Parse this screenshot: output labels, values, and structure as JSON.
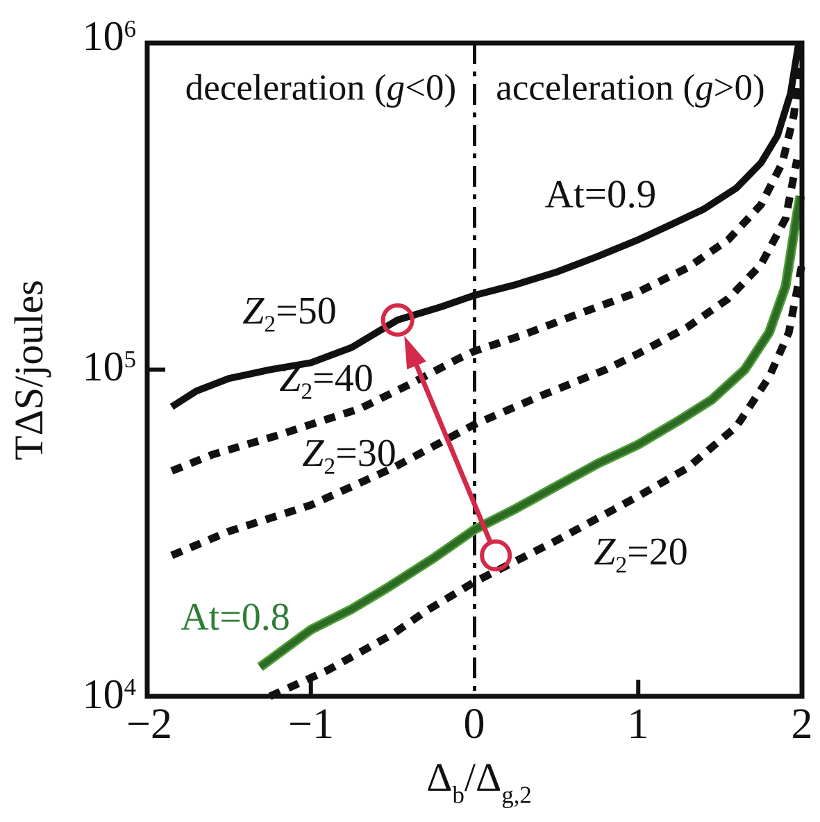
{
  "labels": {
    "ylabel": "TΔS/joules",
    "y_ticks": [
      {
        "base": "10",
        "exp": "6"
      },
      {
        "base": "10",
        "exp": "5"
      },
      {
        "base": "10",
        "exp": "4"
      }
    ],
    "x_ticks": [
      "−2",
      "−1",
      "0",
      "1",
      "2"
    ],
    "xlabel": {
      "d1": "Δ",
      "s1": "b",
      "slash": "/",
      "d2": "Δ",
      "s2": "g,2"
    },
    "decel": {
      "pre": "deceleration (",
      "g": "g",
      "post": "<0)"
    },
    "accel": {
      "pre": "acceleration (",
      "g": "g",
      "post": ">0)"
    },
    "at09": "At=0.9",
    "at08": "At=0.8",
    "z50": {
      "z": "Z",
      "sub": "2",
      "eq": "=50"
    },
    "z40": {
      "z": "Z",
      "sub": "2",
      "eq": "=40"
    },
    "z30": {
      "z": "Z",
      "sub": "2",
      "eq": "=30"
    },
    "z20": {
      "z": "Z",
      "sub": "2",
      "eq": "=20"
    }
  },
  "colors": {
    "black": "#111111",
    "green_curve": "#2d6b24",
    "green_curve_edge": "#4f9f38",
    "green_text": "#2e7d36",
    "red": "#d42a4a"
  },
  "chart_data": {
    "type": "line",
    "title": "",
    "xlabel": "Δb/Δg,2",
    "ylabel": "TΔS/joules",
    "xlim": [
      -2,
      2
    ],
    "ylim": [
      10000,
      1000000
    ],
    "x_scale": "linear",
    "y_scale": "log",
    "grid": false,
    "x_ticks": [
      -2,
      -1,
      0,
      1,
      2
    ],
    "x_tick_marks": [
      -1,
      1
    ],
    "y_ticks": [
      10000,
      100000,
      1000000
    ],
    "y_tick_marks": [
      100000
    ],
    "reference_line_x": 0,
    "region_annotations": [
      "deceleration (g<0)",
      "acceleration (g>0)"
    ],
    "series": [
      {
        "id": "z2-40",
        "name": "Z2=40 (At=0.9 family)",
        "style": "dashed",
        "color": "#111111",
        "width": 11,
        "dash": "16 13",
        "points": [
          [
            -1.85,
            49000
          ],
          [
            -1.6,
            55000
          ],
          [
            -1.2,
            63000
          ],
          [
            -1.0,
            68000
          ],
          [
            -0.7,
            76000
          ],
          [
            -0.4,
            90000
          ],
          [
            -0.1,
            108000
          ],
          [
            0,
            114000
          ],
          [
            0.3,
            128000
          ],
          [
            0.6,
            146000
          ],
          [
            1.0,
            173000
          ],
          [
            1.3,
            205000
          ],
          [
            1.55,
            250000
          ],
          [
            1.75,
            320000
          ],
          [
            1.88,
            430000
          ],
          [
            1.95,
            600000
          ],
          [
            1.99,
            860000
          ]
        ]
      },
      {
        "id": "z2-30",
        "name": "Z2=30 (At=0.9 family)",
        "style": "dashed",
        "color": "#111111",
        "width": 11,
        "dash": "16 13",
        "points": [
          [
            -1.85,
            27000
          ],
          [
            -1.5,
            32000
          ],
          [
            -1.0,
            38500
          ],
          [
            -0.5,
            50000
          ],
          [
            0,
            68000
          ],
          [
            0.4,
            83000
          ],
          [
            0.8,
            100000
          ],
          [
            1.0,
            112000
          ],
          [
            1.3,
            135000
          ],
          [
            1.55,
            165000
          ],
          [
            1.75,
            210000
          ],
          [
            1.9,
            290000
          ],
          [
            1.97,
            440000
          ]
        ]
      },
      {
        "id": "z2-20",
        "name": "Z2=20 (At=0.9 family)",
        "style": "dashed",
        "color": "#111111",
        "width": 11,
        "dash": "16 13",
        "points": [
          [
            -1.25,
            10000
          ],
          [
            -0.9,
            12000
          ],
          [
            -0.5,
            15500
          ],
          [
            -0.3,
            18200
          ],
          [
            0,
            22400
          ],
          [
            0.5,
            30000
          ],
          [
            1.0,
            41000
          ],
          [
            1.3,
            50000
          ],
          [
            1.6,
            67000
          ],
          [
            1.8,
            95000
          ],
          [
            1.92,
            130000
          ],
          [
            2.0,
            210000
          ]
        ]
      },
      {
        "id": "at08",
        "name": "At=0.8",
        "style": "solid",
        "color": "#2d6b24",
        "edge": "#4f9f38",
        "width": 9,
        "edgeWidth": 14,
        "points": [
          [
            -1.31,
            12300
          ],
          [
            -1.0,
            16000
          ],
          [
            -0.75,
            18500
          ],
          [
            -0.52,
            21700
          ],
          [
            -0.25,
            26500
          ],
          [
            0,
            32400
          ],
          [
            0.25,
            37500
          ],
          [
            0.5,
            44000
          ],
          [
            0.75,
            51500
          ],
          [
            1.0,
            59000
          ],
          [
            1.25,
            70000
          ],
          [
            1.45,
            81000
          ],
          [
            1.65,
            100000
          ],
          [
            1.8,
            130000
          ],
          [
            1.9,
            180000
          ],
          [
            1.97,
            300000
          ],
          [
            1.99,
            340000
          ]
        ]
      },
      {
        "id": "at09",
        "name": "At=0.9 (Z2=50)",
        "style": "solid",
        "color": "#111111",
        "width": 10,
        "points": [
          [
            -1.85,
            77000
          ],
          [
            -1.7,
            86000
          ],
          [
            -1.5,
            94000
          ],
          [
            -1.25,
            100000
          ],
          [
            -1.0,
            105000
          ],
          [
            -0.75,
            117000
          ],
          [
            -0.47,
            142000
          ],
          [
            -0.2,
            156000
          ],
          [
            0,
            169000
          ],
          [
            0.25,
            182000
          ],
          [
            0.5,
            199000
          ],
          [
            0.75,
            222000
          ],
          [
            1.0,
            250000
          ],
          [
            1.2,
            278000
          ],
          [
            1.4,
            310000
          ],
          [
            1.6,
            360000
          ],
          [
            1.75,
            430000
          ],
          [
            1.85,
            520000
          ],
          [
            1.93,
            700000
          ],
          [
            1.98,
            1000000
          ]
        ]
      }
    ],
    "annotation_arrow": {
      "from": [
        0.13,
        27000
      ],
      "to": [
        -0.47,
        142000
      ],
      "color": "#d42a4a",
      "marker": "open-circles-and-arrowhead"
    }
  }
}
